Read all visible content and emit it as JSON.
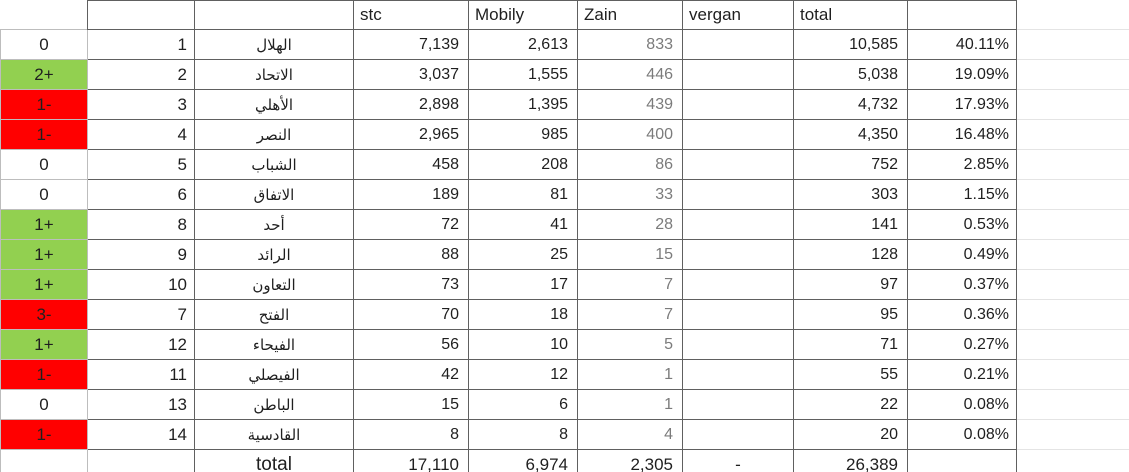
{
  "app": {
    "description": "spreadsheet table of Saudi club telecom-vote totals"
  },
  "colors": {
    "green": "#92d050",
    "red": "#ff0000",
    "grid_dark": "#606060",
    "grid_light": "#e4e4e4",
    "col_a_border": "#bdbdbd",
    "text": "#1f1f1f",
    "zain_text": "#7b7b7b"
  },
  "header": {
    "change": "",
    "rank": "",
    "team": "",
    "stc": "stc",
    "mobily": "Mobily",
    "zain": "Zain",
    "vergan": "vergan",
    "total": "total",
    "pct": ""
  },
  "rows": [
    {
      "change": "0",
      "change_fill": "white",
      "rank": "1",
      "team": "الهلال",
      "stc": "7,139",
      "mobily": "2,613",
      "zain": "833",
      "vergan": "",
      "total": "10,585",
      "pct": "40.11%"
    },
    {
      "change": "2+",
      "change_fill": "green",
      "rank": "2",
      "team": "الاتحاد",
      "stc": "3,037",
      "mobily": "1,555",
      "zain": "446",
      "vergan": "",
      "total": "5,038",
      "pct": "19.09%"
    },
    {
      "change": "1-",
      "change_fill": "red",
      "rank": "3",
      "team": "الأهلي",
      "stc": "2,898",
      "mobily": "1,395",
      "zain": "439",
      "vergan": "",
      "total": "4,732",
      "pct": "17.93%"
    },
    {
      "change": "1-",
      "change_fill": "red",
      "rank": "4",
      "team": "النصر",
      "stc": "2,965",
      "mobily": "985",
      "zain": "400",
      "vergan": "",
      "total": "4,350",
      "pct": "16.48%"
    },
    {
      "change": "0",
      "change_fill": "white",
      "rank": "5",
      "team": "الشباب",
      "stc": "458",
      "mobily": "208",
      "zain": "86",
      "vergan": "",
      "total": "752",
      "pct": "2.85%"
    },
    {
      "change": "0",
      "change_fill": "white",
      "rank": "6",
      "team": "الاتفاق",
      "stc": "189",
      "mobily": "81",
      "zain": "33",
      "vergan": "",
      "total": "303",
      "pct": "1.15%"
    },
    {
      "change": "1+",
      "change_fill": "green",
      "rank": "8",
      "team": "أحد",
      "stc": "72",
      "mobily": "41",
      "zain": "28",
      "vergan": "",
      "total": "141",
      "pct": "0.53%"
    },
    {
      "change": "1+",
      "change_fill": "green",
      "rank": "9",
      "team": "الرائد",
      "stc": "88",
      "mobily": "25",
      "zain": "15",
      "vergan": "",
      "total": "128",
      "pct": "0.49%"
    },
    {
      "change": "1+",
      "change_fill": "green",
      "rank": "10",
      "team": "التعاون",
      "stc": "73",
      "mobily": "17",
      "zain": "7",
      "vergan": "",
      "total": "97",
      "pct": "0.37%"
    },
    {
      "change": "3-",
      "change_fill": "red",
      "rank": "7",
      "team": "الفتح",
      "stc": "70",
      "mobily": "18",
      "zain": "7",
      "vergan": "",
      "total": "95",
      "pct": "0.36%"
    },
    {
      "change": "1+",
      "change_fill": "green",
      "rank": "12",
      "team": "الفيحاء",
      "stc": "56",
      "mobily": "10",
      "zain": "5",
      "vergan": "",
      "total": "71",
      "pct": "0.27%"
    },
    {
      "change": "1-",
      "change_fill": "red",
      "rank": "11",
      "team": "الفيصلي",
      "stc": "42",
      "mobily": "12",
      "zain": "1",
      "vergan": "",
      "total": "55",
      "pct": "0.21%"
    },
    {
      "change": "0",
      "change_fill": "white",
      "rank": "13",
      "team": "الباطن",
      "stc": "15",
      "mobily": "6",
      "zain": "1",
      "vergan": "",
      "total": "22",
      "pct": "0.08%"
    },
    {
      "change": "1-",
      "change_fill": "red",
      "rank": "14",
      "team": "القادسية",
      "stc": "8",
      "mobily": "8",
      "zain": "4",
      "vergan": "",
      "total": "20",
      "pct": "0.08%"
    }
  ],
  "total_row": {
    "change": "",
    "rank": "",
    "label": "total",
    "stc": "17,110",
    "mobily": "6,974",
    "zain": "2,305",
    "vergan": "-",
    "total": "26,389",
    "pct": ""
  }
}
